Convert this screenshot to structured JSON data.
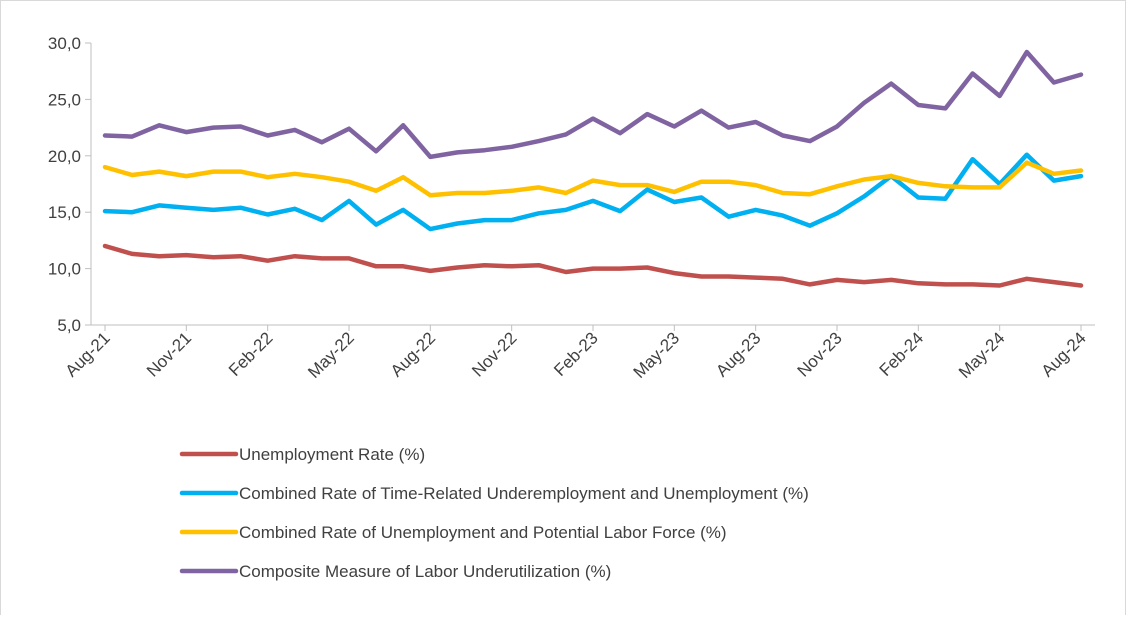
{
  "chart_data": {
    "type": "line",
    "title": "",
    "xlabel": "",
    "ylabel": "",
    "ylim": [
      5,
      30
    ],
    "y_ticks": [
      "5,0",
      "10,0",
      "15,0",
      "20,0",
      "25,0",
      "30,0"
    ],
    "y_tick_values": [
      5,
      10,
      15,
      20,
      25,
      30
    ],
    "grid": false,
    "legend_position": "bottom",
    "x_tick_labels": [
      "Aug-21",
      "Nov-21",
      "Feb-22",
      "May-22",
      "Aug-22",
      "Nov-22",
      "Feb-23",
      "May-23",
      "Aug-23",
      "Nov-23",
      "Feb-24",
      "May-24",
      "Aug-24"
    ],
    "x": [
      "Aug-21",
      "Sep-21",
      "Oct-21",
      "Nov-21",
      "Dec-21",
      "Jan-22",
      "Feb-22",
      "Mar-22",
      "Apr-22",
      "May-22",
      "Jun-22",
      "Jul-22",
      "Aug-22",
      "Sep-22",
      "Oct-22",
      "Nov-22",
      "Dec-22",
      "Jan-23",
      "Feb-23",
      "Mar-23",
      "Apr-23",
      "May-23",
      "Jun-23",
      "Jul-23",
      "Aug-23",
      "Sep-23",
      "Oct-23",
      "Nov-23",
      "Dec-23",
      "Jan-24",
      "Feb-24",
      "Mar-24",
      "Apr-24",
      "May-24",
      "Jun-24",
      "Jul-24",
      "Aug-24"
    ],
    "series": [
      {
        "name": "Unemployment Rate (%)",
        "color": "#C0504D",
        "values": [
          12.0,
          11.3,
          11.1,
          11.2,
          11.0,
          11.1,
          10.7,
          11.1,
          10.9,
          10.9,
          10.2,
          10.2,
          9.8,
          10.1,
          10.3,
          10.2,
          10.3,
          9.7,
          10.0,
          10.0,
          10.1,
          9.6,
          9.3,
          9.3,
          9.2,
          9.1,
          8.6,
          9.0,
          8.8,
          9.0,
          8.7,
          8.6,
          8.6,
          8.5,
          9.1,
          8.8,
          8.5
        ]
      },
      {
        "name": "Combined Rate of Time-Related Underemployment and Unemployment (%)",
        "color": "#00B0F0",
        "values": [
          15.1,
          15.0,
          15.6,
          15.4,
          15.2,
          15.4,
          14.8,
          15.3,
          14.3,
          16.0,
          13.9,
          15.2,
          13.5,
          14.0,
          14.3,
          14.3,
          14.9,
          15.2,
          16.0,
          15.1,
          17.0,
          15.9,
          16.3,
          14.6,
          15.2,
          14.7,
          13.8,
          14.9,
          16.4,
          18.2,
          16.3,
          16.2,
          19.7,
          17.5,
          20.1,
          17.8,
          18.2
        ]
      },
      {
        "name": "Combined Rate of Unemployment and Potential Labor Force (%)",
        "color": "#FFC000",
        "values": [
          19.0,
          18.3,
          18.6,
          18.2,
          18.6,
          18.6,
          18.1,
          18.4,
          18.1,
          17.7,
          16.9,
          18.1,
          16.5,
          16.7,
          16.7,
          16.9,
          17.2,
          16.7,
          17.8,
          17.4,
          17.4,
          16.8,
          17.7,
          17.7,
          17.4,
          16.7,
          16.6,
          17.3,
          17.9,
          18.2,
          17.6,
          17.3,
          17.2,
          17.2,
          19.4,
          18.4,
          18.7
        ]
      },
      {
        "name": "Composite Measure of Labor Underutilization (%)",
        "color": "#8064A2",
        "values": [
          21.8,
          21.7,
          22.7,
          22.1,
          22.5,
          22.6,
          21.8,
          22.3,
          21.2,
          22.4,
          20.4,
          22.7,
          19.9,
          20.3,
          20.5,
          20.8,
          21.3,
          21.9,
          23.3,
          22.0,
          23.7,
          22.6,
          24.0,
          22.5,
          23.0,
          21.8,
          21.3,
          22.6,
          24.7,
          26.4,
          24.5,
          24.2,
          27.3,
          25.3,
          29.2,
          26.5,
          27.2
        ]
      }
    ]
  }
}
